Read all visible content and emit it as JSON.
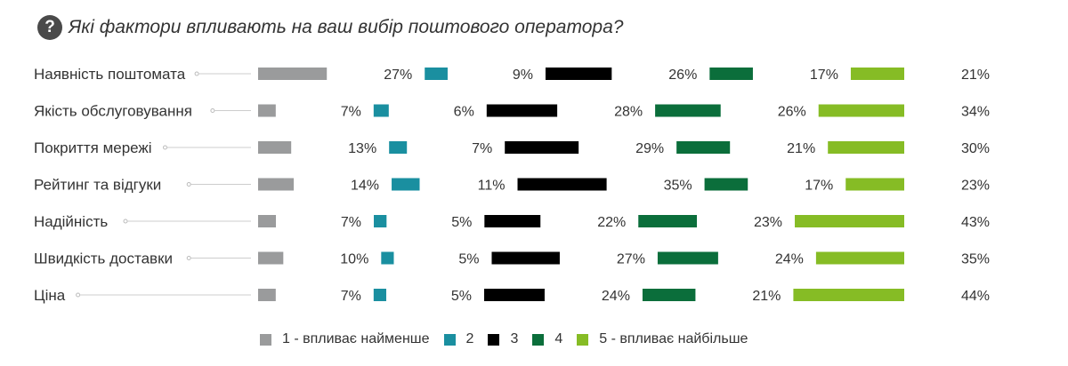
{
  "title": "Які фактори впливають на ваш вибір поштового оператора?",
  "title_icon": "question-circle-icon",
  "chart_data": {
    "type": "bar",
    "orientation": "horizontal",
    "stacked": true,
    "value_suffix": "%",
    "title": "Які фактори впливають на ваш вибір поштового оператора?",
    "categories": [
      "Наявність поштомата",
      "Якість обслуговування",
      "Покриття мережі",
      "Рейтинг та відгуки",
      "Надійність",
      "Швидкість доставки",
      "Ціна"
    ],
    "series": [
      {
        "name": "1 - впливає найменше",
        "color": "#9a9b9c",
        "values": [
          27,
          7,
          13,
          14,
          7,
          10,
          7
        ]
      },
      {
        "name": "2",
        "color": "#1a8fa0",
        "values": [
          9,
          6,
          7,
          11,
          5,
          5,
          5
        ]
      },
      {
        "name": "3",
        "color": "#000000",
        "values": [
          26,
          28,
          29,
          35,
          22,
          27,
          24
        ]
      },
      {
        "name": "4",
        "color": "#0b6e3b",
        "values": [
          17,
          26,
          21,
          17,
          23,
          24,
          21
        ]
      },
      {
        "name": "5 - впливає найбільше",
        "color": "#86bc25",
        "values": [
          21,
          34,
          30,
          23,
          43,
          35,
          44
        ]
      }
    ],
    "legend_position": "bottom",
    "grid": false
  }
}
